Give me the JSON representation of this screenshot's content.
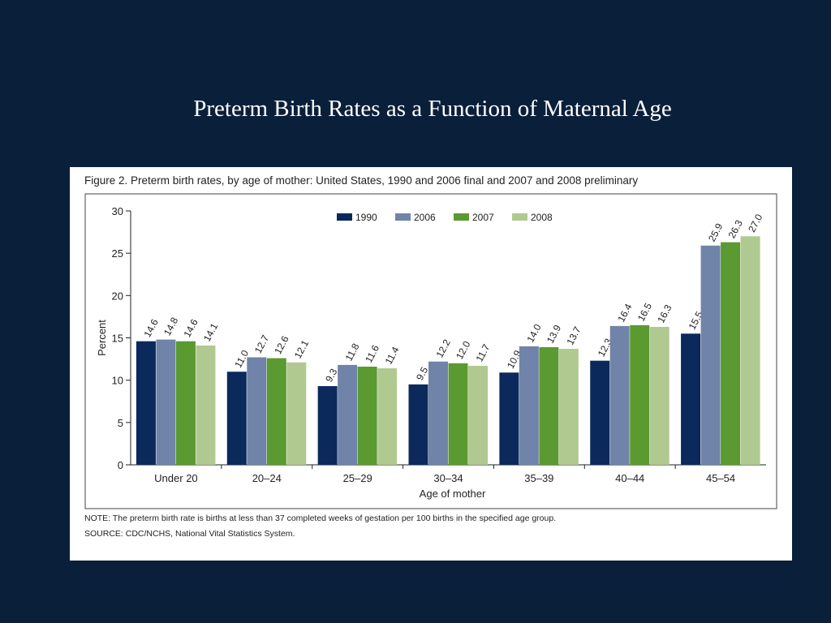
{
  "slide": {
    "title": "Preterm Birth Rates as a Function of Maternal Age"
  },
  "figure": {
    "caption": "Figure 2. Preterm birth rates, by age of mother: United States, 1990 and 2006 final and 2007 and 2008 preliminary",
    "note": "NOTE: The preterm birth rate is births at less than 37 completed weeks of gestation per 100 births in the specified age group.",
    "source": "SOURCE: CDC/NCHS, National Vital Statistics System."
  },
  "chart_data": {
    "type": "bar",
    "title": "",
    "xlabel": "Age of mother",
    "ylabel": "Percent",
    "ylim": [
      0,
      30
    ],
    "yticks": [
      0,
      5,
      10,
      15,
      20,
      25,
      30
    ],
    "grid": false,
    "legend_position": "top",
    "categories": [
      "Under 20",
      "20–24",
      "25–29",
      "30–34",
      "35–39",
      "40–44",
      "45–54"
    ],
    "series": [
      {
        "name": "1990",
        "color": "#0b2a5b",
        "values": [
          14.6,
          11.0,
          9.3,
          9.5,
          10.9,
          12.3,
          15.5
        ]
      },
      {
        "name": "2006",
        "color": "#6f84a8",
        "values": [
          14.8,
          12.7,
          11.8,
          12.2,
          14.0,
          16.4,
          25.9
        ]
      },
      {
        "name": "2007",
        "color": "#5a9a30",
        "values": [
          14.6,
          12.6,
          11.6,
          12.0,
          13.9,
          16.5,
          26.3
        ]
      },
      {
        "name": "2008",
        "color": "#b0c990",
        "values": [
          14.1,
          12.1,
          11.4,
          11.7,
          13.7,
          16.3,
          27.0
        ]
      }
    ],
    "data_labels": [
      [
        "14.6",
        "11.0",
        "9.3",
        "9.5",
        "10.9",
        "12.3",
        "15.5"
      ],
      [
        "14.8",
        "12.7",
        "11.8",
        "12.2",
        "14.0",
        "16.4",
        "25.9"
      ],
      [
        "14.6",
        "12.6",
        "11.6",
        "12.0",
        "13.9",
        "16.5",
        "26.3"
      ],
      [
        "14.1",
        "12.1",
        "11.4",
        "11.7",
        "13.7",
        "16.3",
        "27.0"
      ]
    ]
  }
}
